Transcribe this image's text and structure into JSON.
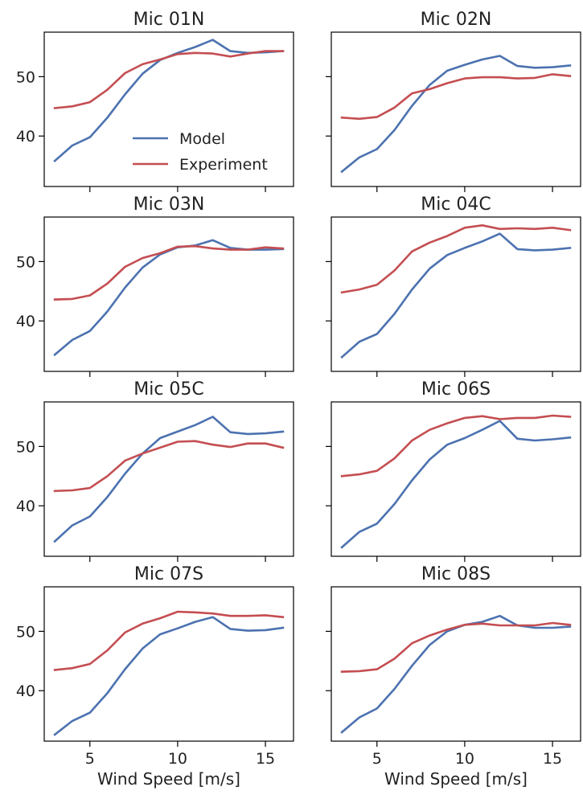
{
  "figure": {
    "legend": {
      "placement": "lower-right",
      "panel": 0
    },
    "colors": {
      "Model": "#4c72b0",
      "Experiment": "#c44e52"
    }
  },
  "chart_data": [
    {
      "type": "line",
      "title": "Mic 01N",
      "xlabel": "",
      "ylabel": "",
      "xlim": [
        2.4,
        16.6
      ],
      "ylim": [
        31.5,
        57.5
      ],
      "xticks": [
        5,
        10,
        15
      ],
      "yticks": [
        40,
        50
      ],
      "show_xtick_labels": false,
      "show_ytick_labels": true,
      "show_legend": true,
      "x": [
        3,
        4,
        5,
        6,
        7,
        8,
        9,
        10,
        11,
        12,
        13,
        14,
        15,
        16
      ],
      "series": [
        {
          "name": "Model",
          "values": [
            35.8,
            38.4,
            39.8,
            43.1,
            47.0,
            50.5,
            52.8,
            54.0,
            55.0,
            56.2,
            54.3,
            54.0,
            54.1,
            54.3
          ]
        },
        {
          "name": "Experiment",
          "values": [
            44.7,
            45.0,
            45.7,
            47.8,
            50.6,
            52.1,
            52.9,
            53.8,
            54.0,
            53.9,
            53.4,
            53.9,
            54.3,
            54.3
          ]
        }
      ]
    },
    {
      "type": "line",
      "title": "Mic 02N",
      "xlabel": "",
      "ylabel": "",
      "xlim": [
        2.4,
        16.6
      ],
      "ylim": [
        31.5,
        57.5
      ],
      "xticks": [
        5,
        10,
        15
      ],
      "yticks": [
        40,
        50
      ],
      "show_xtick_labels": false,
      "show_ytick_labels": false,
      "show_legend": false,
      "x": [
        3,
        4,
        5,
        6,
        7,
        8,
        9,
        10,
        11,
        12,
        13,
        14,
        15,
        16
      ],
      "series": [
        {
          "name": "Model",
          "values": [
            34.0,
            36.4,
            37.8,
            41.0,
            45.1,
            48.6,
            51.0,
            52.0,
            52.9,
            53.5,
            51.8,
            51.5,
            51.6,
            51.9
          ]
        },
        {
          "name": "Experiment",
          "values": [
            43.1,
            42.9,
            43.2,
            44.8,
            47.2,
            47.9,
            48.9,
            49.7,
            49.9,
            49.9,
            49.7,
            49.8,
            50.4,
            50.1
          ]
        }
      ]
    },
    {
      "type": "line",
      "title": "Mic 03N",
      "xlabel": "",
      "ylabel": "",
      "xlim": [
        2.4,
        16.6
      ],
      "ylim": [
        31.5,
        57.5
      ],
      "xticks": [
        5,
        10,
        15
      ],
      "yticks": [
        40,
        50
      ],
      "show_xtick_labels": false,
      "show_ytick_labels": true,
      "show_legend": false,
      "x": [
        3,
        4,
        5,
        6,
        7,
        8,
        9,
        10,
        11,
        12,
        13,
        14,
        15,
        16
      ],
      "series": [
        {
          "name": "Model",
          "values": [
            34.3,
            36.8,
            38.3,
            41.6,
            45.6,
            49.0,
            51.2,
            52.4,
            52.7,
            53.6,
            52.3,
            52.0,
            52.0,
            52.1
          ]
        },
        {
          "name": "Experiment",
          "values": [
            43.6,
            43.7,
            44.3,
            46.3,
            49.1,
            50.6,
            51.4,
            52.5,
            52.6,
            52.2,
            52.0,
            52.0,
            52.4,
            52.2
          ]
        }
      ]
    },
    {
      "type": "line",
      "title": "Mic 04C",
      "xlabel": "",
      "ylabel": "",
      "xlim": [
        2.4,
        16.6
      ],
      "ylim": [
        31.5,
        57.5
      ],
      "xticks": [
        5,
        10,
        15
      ],
      "yticks": [
        40,
        50
      ],
      "show_xtick_labels": false,
      "show_ytick_labels": false,
      "show_legend": false,
      "x": [
        3,
        4,
        5,
        6,
        7,
        8,
        9,
        10,
        11,
        12,
        13,
        14,
        15,
        16
      ],
      "series": [
        {
          "name": "Model",
          "values": [
            33.9,
            36.5,
            37.8,
            41.2,
            45.3,
            48.8,
            51.1,
            52.3,
            53.4,
            54.7,
            52.1,
            51.9,
            52.0,
            52.3
          ]
        },
        {
          "name": "Experiment",
          "values": [
            44.8,
            45.3,
            46.1,
            48.5,
            51.7,
            53.2,
            54.3,
            55.7,
            56.1,
            55.5,
            55.6,
            55.5,
            55.7,
            55.3
          ]
        }
      ]
    },
    {
      "type": "line",
      "title": "Mic 05C",
      "xlabel": "",
      "ylabel": "",
      "xlim": [
        2.4,
        16.6
      ],
      "ylim": [
        31.5,
        57.5
      ],
      "xticks": [
        5,
        10,
        15
      ],
      "yticks": [
        40,
        50
      ],
      "show_xtick_labels": false,
      "show_ytick_labels": true,
      "show_legend": false,
      "x": [
        3,
        4,
        5,
        6,
        7,
        8,
        9,
        10,
        11,
        12,
        13,
        14,
        15,
        16
      ],
      "series": [
        {
          "name": "Model",
          "values": [
            34.0,
            36.7,
            38.2,
            41.5,
            45.4,
            48.8,
            51.4,
            52.5,
            53.6,
            55.0,
            52.4,
            52.1,
            52.2,
            52.5
          ]
        },
        {
          "name": "Experiment",
          "values": [
            42.5,
            42.6,
            43.0,
            45.0,
            47.6,
            48.8,
            49.8,
            50.8,
            50.9,
            50.3,
            49.9,
            50.5,
            50.5,
            49.8
          ]
        }
      ]
    },
    {
      "type": "line",
      "title": "Mic 06S",
      "xlabel": "",
      "ylabel": "",
      "xlim": [
        2.4,
        16.6
      ],
      "ylim": [
        31.5,
        57.5
      ],
      "xticks": [
        5,
        10,
        15
      ],
      "yticks": [
        40,
        50
      ],
      "show_xtick_labels": false,
      "show_ytick_labels": false,
      "show_legend": false,
      "x": [
        3,
        4,
        5,
        6,
        7,
        8,
        9,
        10,
        11,
        12,
        13,
        14,
        15,
        16
      ],
      "series": [
        {
          "name": "Model",
          "values": [
            33.0,
            35.6,
            37.0,
            40.3,
            44.3,
            47.8,
            50.3,
            51.4,
            52.8,
            54.3,
            51.3,
            51.0,
            51.2,
            51.5
          ]
        },
        {
          "name": "Experiment",
          "values": [
            45.0,
            45.3,
            45.9,
            48.0,
            51.0,
            52.8,
            53.9,
            54.8,
            55.1,
            54.6,
            54.8,
            54.8,
            55.2,
            55.0
          ]
        }
      ]
    },
    {
      "type": "line",
      "title": "Mic 07S",
      "xlabel": "Wind Speed [m/s]",
      "ylabel": "",
      "xlim": [
        2.4,
        16.6
      ],
      "ylim": [
        31.5,
        57.5
      ],
      "xticks": [
        5,
        10,
        15
      ],
      "yticks": [
        40,
        50
      ],
      "show_xtick_labels": true,
      "show_ytick_labels": true,
      "show_legend": false,
      "x": [
        3,
        4,
        5,
        6,
        7,
        8,
        9,
        10,
        11,
        12,
        13,
        14,
        15,
        16
      ],
      "series": [
        {
          "name": "Model",
          "values": [
            32.6,
            34.9,
            36.3,
            39.6,
            43.6,
            47.1,
            49.5,
            50.5,
            51.6,
            52.4,
            50.4,
            50.1,
            50.2,
            50.6
          ]
        },
        {
          "name": "Experiment",
          "values": [
            43.5,
            43.8,
            44.5,
            46.8,
            49.8,
            51.3,
            52.2,
            53.3,
            53.2,
            53.0,
            52.6,
            52.6,
            52.7,
            52.4
          ]
        }
      ]
    },
    {
      "type": "line",
      "title": "Mic 08S",
      "xlabel": "Wind Speed [m/s]",
      "ylabel": "",
      "xlim": [
        2.4,
        16.6
      ],
      "ylim": [
        31.5,
        57.5
      ],
      "xticks": [
        5,
        10,
        15
      ],
      "yticks": [
        40,
        50
      ],
      "show_xtick_labels": true,
      "show_ytick_labels": false,
      "show_legend": false,
      "x": [
        3,
        4,
        5,
        6,
        7,
        8,
        9,
        10,
        11,
        12,
        13,
        14,
        15,
        16
      ],
      "series": [
        {
          "name": "Model",
          "values": [
            33.0,
            35.5,
            37.0,
            40.3,
            44.2,
            47.7,
            50.0,
            51.1,
            51.6,
            52.6,
            51.0,
            50.6,
            50.6,
            50.8
          ]
        },
        {
          "name": "Experiment",
          "values": [
            43.2,
            43.3,
            43.6,
            45.4,
            48.0,
            49.3,
            50.3,
            51.1,
            51.3,
            51.0,
            51.0,
            51.0,
            51.4,
            51.1
          ]
        }
      ]
    }
  ]
}
